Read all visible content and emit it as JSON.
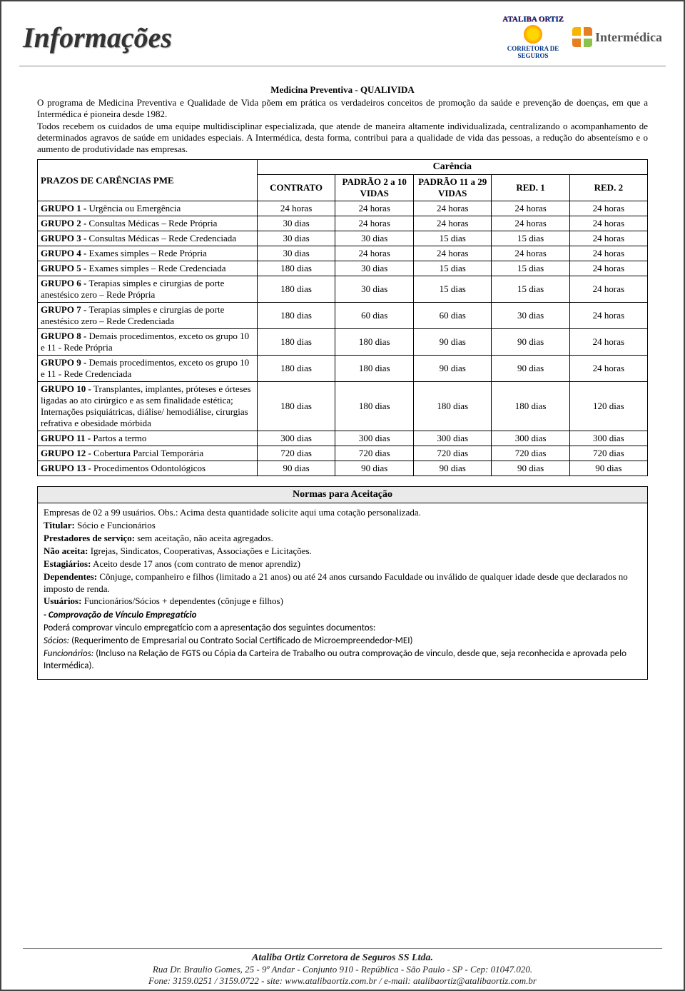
{
  "header": {
    "title": "Informações",
    "logo_top": "ATALIBA ORTIZ",
    "logo_bottom": "CORRETORA DE SEGUROS",
    "intermedica": "Intermédica"
  },
  "section": {
    "title": "Medicina Preventiva - QUALIVIDA",
    "intro": "O programa de Medicina Preventiva e Qualidade de Vida põem em prática os verdadeiros conceitos de promoção da saúde e prevenção de doenças, em que a Intermédica é pioneira desde 1982.\nTodos recebem os cuidados de uma equipe multidisciplinar especializada, que atende de maneira altamente individualizada, centralizando o acompanhamento de determinados agravos de saúde em unidades especiais. A Intermédica, desta forma, contribui para a qualidade de vida das pessoas, a redução do absenteísmo e o aumento de produtividade nas empresas."
  },
  "carencia": {
    "title": "Carência",
    "head_prazo": "PRAZOS DE CARÊNCIAS PME",
    "head_contrato": "CONTRATO",
    "head_p1": "PADRÃO 2 a 10 VIDAS",
    "head_p2": "PADRÃO 11 a 29 VIDAS",
    "head_r1": "RED. 1",
    "head_r2": "RED. 2",
    "rows": [
      {
        "g": "GRUPO 1 - ",
        "label": "Urgência ou Emergência",
        "v": [
          "24 horas",
          "24 horas",
          "24 horas",
          "24 horas",
          "24 horas"
        ]
      },
      {
        "g": "GRUPO 2 - ",
        "label": "Consultas Médicas – Rede Própria",
        "v": [
          "30 dias",
          "24 horas",
          "24 horas",
          "24 horas",
          "24 horas"
        ]
      },
      {
        "g": "GRUPO 3 - ",
        "label": "Consultas Médicas – Rede Credenciada",
        "v": [
          "30 dias",
          "30 dias",
          "15 dias",
          "15 dias",
          "24 horas"
        ]
      },
      {
        "g": "GRUPO 4 - ",
        "label": "Exames simples – Rede Própria",
        "v": [
          "30 dias",
          "24 horas",
          "24 horas",
          "24 horas",
          "24 horas"
        ]
      },
      {
        "g": "GRUPO 5 - ",
        "label": "Exames simples – Rede Credenciada",
        "v": [
          "180 dias",
          "30 dias",
          "15 dias",
          "15 dias",
          "24 horas"
        ]
      },
      {
        "g": "GRUPO 6 - ",
        "label": "Terapias simples e cirurgias de porte anestésico zero – Rede Própria",
        "v": [
          "180 dias",
          "30 dias",
          "15 dias",
          "15 dias",
          "24 horas"
        ]
      },
      {
        "g": "GRUPO 7 - ",
        "label": "Terapias simples e cirurgias de porte anestésico zero – Rede Credenciada",
        "v": [
          "180 dias",
          "60 dias",
          "60 dias",
          "30 dias",
          "24 horas"
        ]
      },
      {
        "g": "GRUPO 8 - ",
        "label": "Demais procedimentos, exceto os grupo 10 e 11 - Rede Própria",
        "v": [
          "180 dias",
          "180 dias",
          "90 dias",
          "90 dias",
          "24 horas"
        ]
      },
      {
        "g": "GRUPO 9 - ",
        "label": "Demais procedimentos, exceto os grupo 10 e 11 - Rede Credenciada",
        "v": [
          "180 dias",
          "180 dias",
          "90 dias",
          "90 dias",
          "24 horas"
        ]
      },
      {
        "g": "GRUPO 10 - ",
        "label": "Transplantes, implantes, próteses e órteses ligadas ao ato cirúrgico e as sem finalidade estética; Internações psiquiátricas, diálise/ hemodiálise, cirurgias refrativa e obesidade mórbida",
        "v": [
          "180 dias",
          "180 dias",
          "180 dias",
          "180 dias",
          "120 dias"
        ]
      },
      {
        "g": "GRUPO 11 - ",
        "label": "Partos a termo",
        "v": [
          "300 dias",
          "300 dias",
          "300 dias",
          "300 dias",
          "300 dias"
        ]
      },
      {
        "g": "GRUPO 12 - ",
        "label": "Cobertura Parcial Temporária",
        "v": [
          "720 dias",
          "720 dias",
          "720 dias",
          "720 dias",
          "720 dias"
        ]
      },
      {
        "g": "GRUPO 13 - ",
        "label": "Procedimentos Odontológicos",
        "v": [
          "90 dias",
          "90 dias",
          "90 dias",
          "90 dias",
          "90 dias"
        ]
      }
    ]
  },
  "normas": {
    "title": "Normas para Aceitação",
    "l1": "Empresas de 02 a 99 usuários. Obs.: Acima desta quantidade solicite aqui uma cotação personalizada.",
    "l2b": "Titular:",
    "l2": " Sócio e Funcionários",
    "l3b": "Prestadores de serviço:",
    "l3": " sem aceitação, não aceita agregados.",
    "l4b": "Não aceita:",
    "l4": " Igrejas, Sindicatos, Cooperativas, Associações e Licitações.",
    "l5b": "Estagiários:",
    "l5": " Aceito desde 17 anos (com contrato de menor aprendiz)",
    "l6b": "Dependentes:",
    "l6": " Cônjuge, companheiro e filhos (limitado a 21 anos) ou até 24 anos cursando Faculdade ou inválido de qualquer idade desde que declarados no imposto de renda.",
    "l7b": "Usuários:",
    "l7": " Funcionários/Sócios + dependentes (cônjuge e filhos)",
    "sub_head": "- Comprovação de Vínculo Empregatício",
    "s1": "Poderá comprovar vinculo empregatício com a apresentação dos seguintes documentos:",
    "s2i": "Sócios:",
    "s2": " (Requerimento de Empresarial ou Contrato Social Certificado de Microempreendedor-MEI)",
    "s3i": "Funcionários:",
    "s3": " (Incluso na Relação de FGTS ou Cópia da Carteira de Trabalho ou outra comprovação de vinculo, desde que, seja reconhecida e aprovada pelo Intermédica)."
  },
  "footer": {
    "l1": "Ataliba Ortiz Corretora de Seguros SS Ltda.",
    "l2": "Rua Dr. Braulio Gomes, 25 - 9º Andar - Conjunto 910 - República - São Paulo - SP - Cep: 01047.020.",
    "l3": "Fone: 3159.0251 / 3159.0722 - site: www.atalibaortiz.com.br / e-mail: atalibaortiz@atalibaortiz.com.br"
  }
}
